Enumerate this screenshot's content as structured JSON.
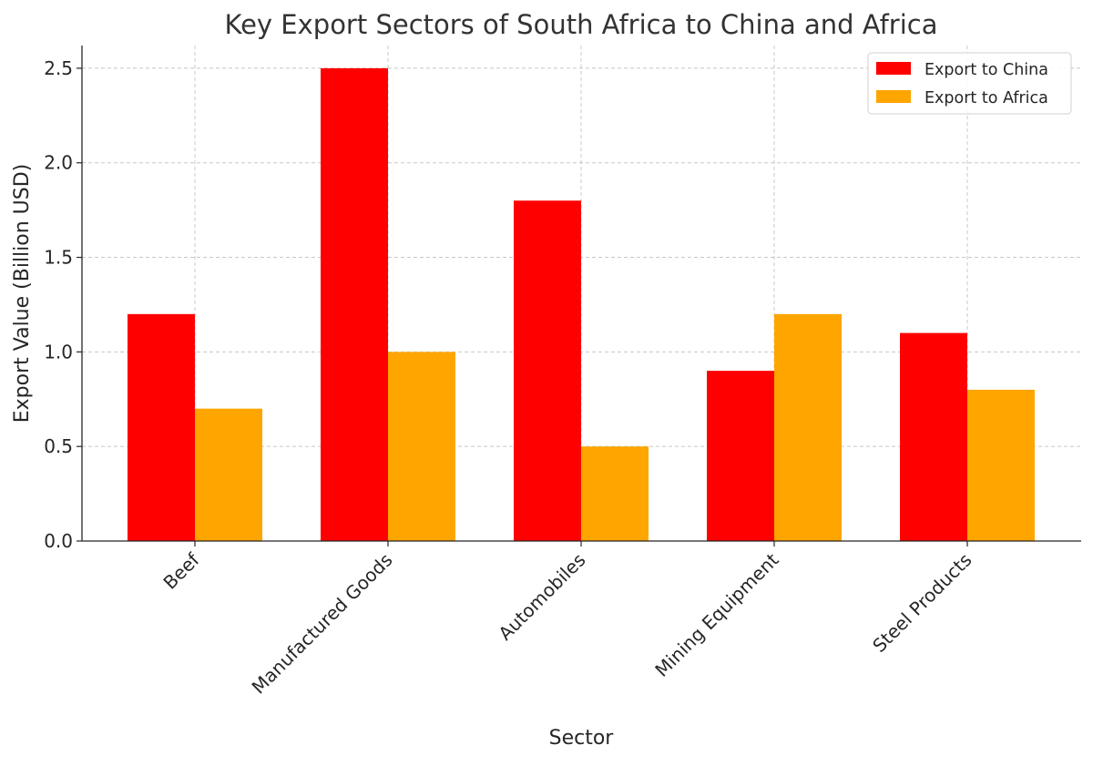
{
  "chart_data": {
    "type": "bar",
    "title": "Key Export Sectors of South Africa to China and Africa",
    "xlabel": "Sector",
    "ylabel": "Export Value (Billion USD)",
    "categories": [
      "Beef",
      "Manufactured Goods",
      "Automobiles",
      "Mining Equipment",
      "Steel Products"
    ],
    "series": [
      {
        "name": "Export to China",
        "color": "#ff0000",
        "values": [
          1.2,
          2.5,
          1.8,
          0.9,
          1.1
        ]
      },
      {
        "name": "Export to Africa",
        "color": "#ffa500",
        "values": [
          0.7,
          1.0,
          0.5,
          1.2,
          0.8
        ]
      }
    ],
    "ylim": [
      0,
      2.62
    ],
    "yticks": [
      "0.0",
      "0.5",
      "1.0",
      "1.5",
      "2.0",
      "2.5"
    ],
    "grid": true,
    "legend_position": "top-right"
  }
}
